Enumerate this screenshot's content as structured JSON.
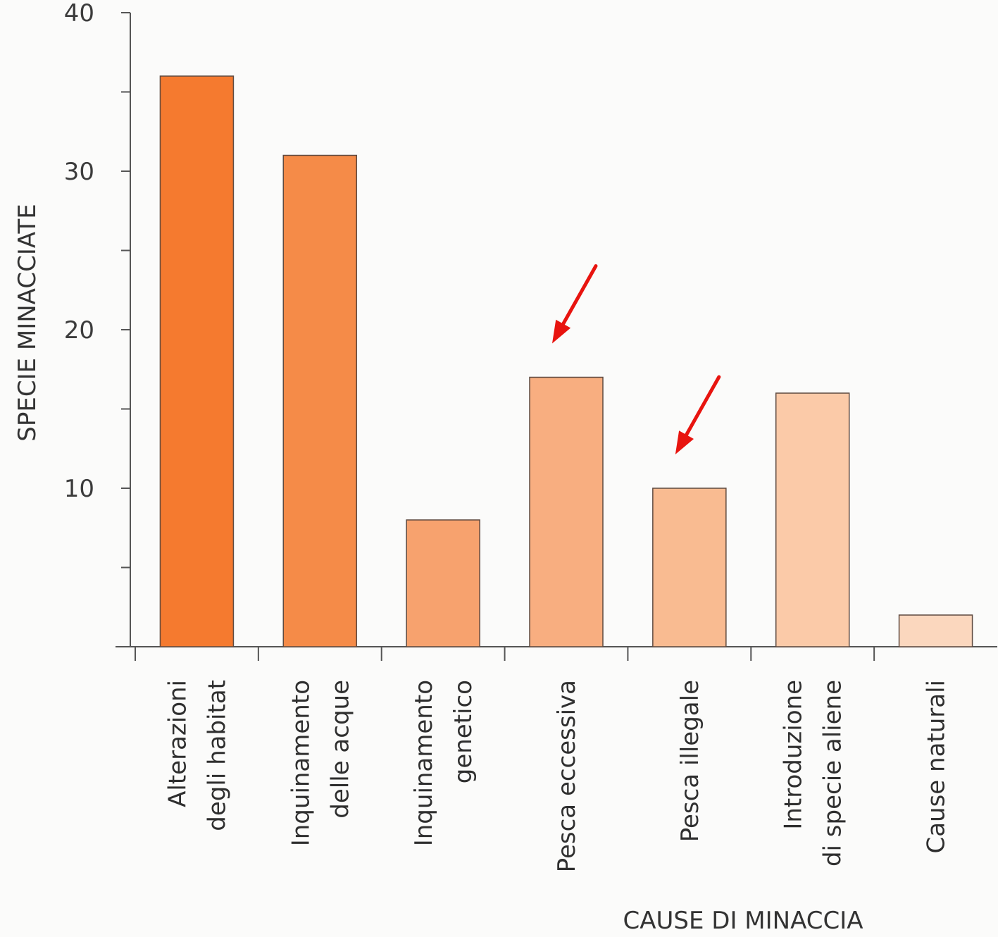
{
  "chart_data": {
    "type": "bar",
    "categories": [
      [
        "Alterazioni",
        "degli habitat"
      ],
      [
        "Inquinamento",
        "delle acque"
      ],
      [
        "Inquinamento",
        "genetico"
      ],
      [
        "Pesca eccessiva"
      ],
      [
        "Pesca illegale"
      ],
      [
        "Introduzione",
        "di specie aliene"
      ],
      [
        "Cause naturali"
      ]
    ],
    "values": [
      36,
      31,
      8,
      17,
      10,
      16,
      2
    ],
    "colors": [
      "#f57a2f",
      "#f58b48",
      "#f7a26e",
      "#f8ae80",
      "#f9bb91",
      "#fbcaa8",
      "#fbd7be"
    ],
    "ylim": [
      0,
      40
    ],
    "yticks": [
      10,
      20,
      30,
      40
    ],
    "ylabel": "SPECIE MINACCIATE",
    "xlabel": "CAUSE DI MINACCIA",
    "title": "",
    "highlighted": [
      3,
      4
    ],
    "highlight_color": "#e8140f",
    "highlight_marker": "red-arrow-icon"
  }
}
